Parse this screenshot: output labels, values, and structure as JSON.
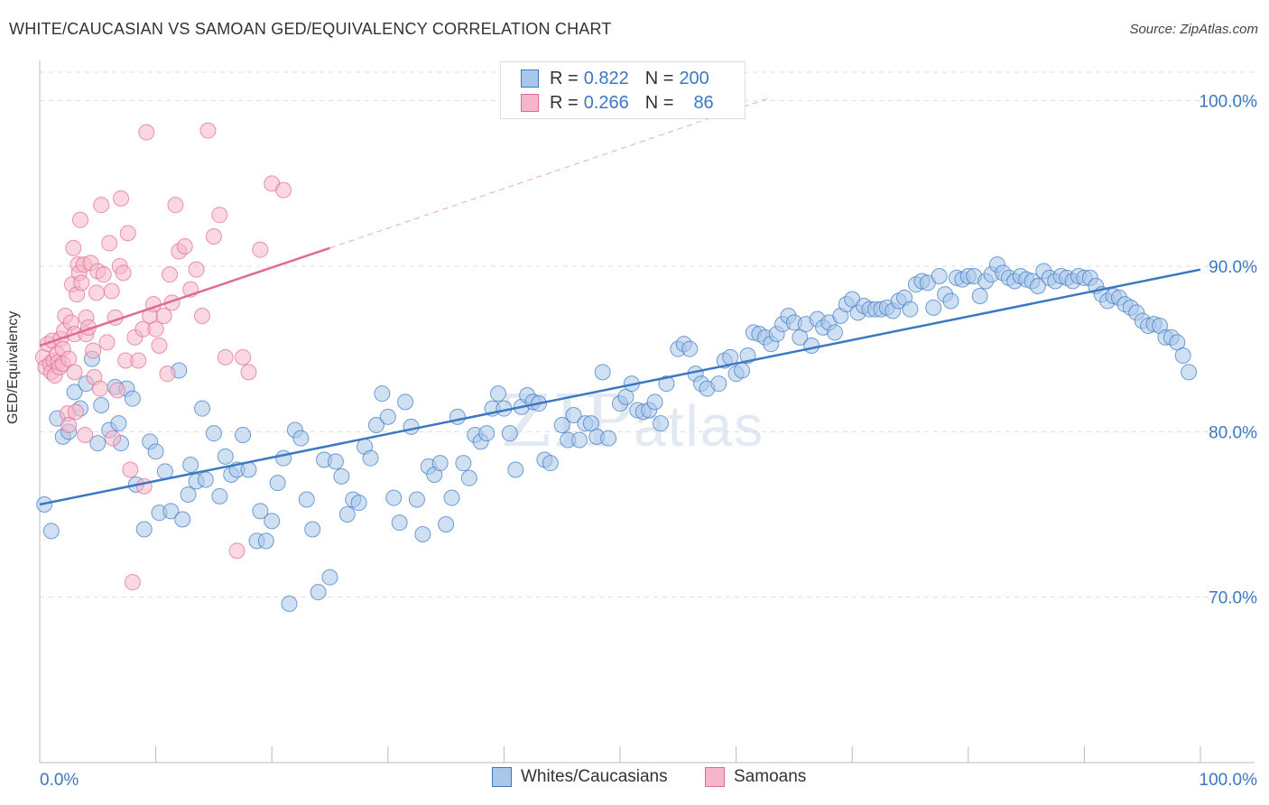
{
  "title": "WHITE/CAUCASIAN VS SAMOAN GED/EQUIVALENCY CORRELATION CHART",
  "source": "Source: ZipAtlas.com",
  "watermark": "ZIPatlas",
  "legend": {
    "row1": {
      "r_label": "R =",
      "r_value": "0.822",
      "n_label": "N =",
      "n_value": "200"
    },
    "row2": {
      "r_label": "R =",
      "r_value": "0.266",
      "n_label": "N =",
      "n_value": "86"
    }
  },
  "colors": {
    "blue": "#3b78c3",
    "blue_fill": "#a9c7ea",
    "pink": "#e06a92",
    "pink_fill": "#f5b6c9"
  },
  "chart_data": {
    "type": "scatter",
    "xlabel": "",
    "ylabel": "GED/Equivalency",
    "xlim": [
      0,
      100
    ],
    "ylim": [
      60,
      102
    ],
    "x_tick_labels": [
      "0.0%",
      "100.0%"
    ],
    "y_tick_labels": [
      "70.0%",
      "80.0%",
      "90.0%",
      "100.0%"
    ],
    "y_ticks": [
      70,
      80,
      90,
      100
    ],
    "grid": true,
    "series": [
      {
        "name": "Whites/Caucasians",
        "color": "#3b78c3",
        "trend": {
          "x0": 0,
          "y0": 75.6,
          "x1": 100,
          "y1": 89.8
        },
        "points": [
          [
            0.4,
            75.6
          ],
          [
            1,
            74
          ],
          [
            1.5,
            80.8
          ],
          [
            2,
            79.7
          ],
          [
            2.5,
            80
          ],
          [
            3,
            82.4
          ],
          [
            3.5,
            81.4
          ],
          [
            4,
            82.9
          ],
          [
            4.5,
            84.4
          ],
          [
            5,
            79.3
          ],
          [
            5.3,
            81.6
          ],
          [
            6,
            80.1
          ],
          [
            6.5,
            82.7
          ],
          [
            6.8,
            80.5
          ],
          [
            7,
            79.3
          ],
          [
            7.5,
            82.6
          ],
          [
            8,
            82
          ],
          [
            8.3,
            76.8
          ],
          [
            9,
            74.1
          ],
          [
            9.5,
            79.4
          ],
          [
            10,
            78.8
          ],
          [
            10.3,
            75.1
          ],
          [
            10.8,
            77.6
          ],
          [
            11.3,
            75.2
          ],
          [
            12,
            83.7
          ],
          [
            12.3,
            74.7
          ],
          [
            12.8,
            76.2
          ],
          [
            13,
            78
          ],
          [
            13.5,
            77
          ],
          [
            14,
            81.4
          ],
          [
            14.3,
            77.1
          ],
          [
            15,
            79.9
          ],
          [
            15.5,
            76.1
          ],
          [
            16,
            78.5
          ],
          [
            16.5,
            77.4
          ],
          [
            17,
            77.7
          ],
          [
            17.5,
            79.8
          ],
          [
            18,
            77.7
          ],
          [
            18.7,
            73.4
          ],
          [
            19,
            75.2
          ],
          [
            19.5,
            73.4
          ],
          [
            20,
            74.6
          ],
          [
            20.5,
            76.9
          ],
          [
            21,
            78.4
          ],
          [
            21.5,
            69.6
          ],
          [
            22,
            80.1
          ],
          [
            22.5,
            79.6
          ],
          [
            23,
            75.9
          ],
          [
            23.5,
            74.1
          ],
          [
            24,
            70.3
          ],
          [
            24.5,
            78.3
          ],
          [
            25,
            71.2
          ],
          [
            25.5,
            78.2
          ],
          [
            26,
            77.3
          ],
          [
            26.5,
            75
          ],
          [
            27,
            75.9
          ],
          [
            27.5,
            75.7
          ],
          [
            28,
            79.1
          ],
          [
            28.5,
            78.4
          ],
          [
            29,
            80.4
          ],
          [
            29.5,
            82.3
          ],
          [
            30,
            80.9
          ],
          [
            30.5,
            76
          ],
          [
            31,
            74.5
          ],
          [
            31.5,
            81.8
          ],
          [
            32,
            80.3
          ],
          [
            32.5,
            75.9
          ],
          [
            33,
            73.8
          ],
          [
            33.5,
            77.9
          ],
          [
            34,
            77.4
          ],
          [
            34.5,
            78.1
          ],
          [
            35,
            74.4
          ],
          [
            35.5,
            76
          ],
          [
            36,
            80.9
          ],
          [
            36.5,
            78.1
          ],
          [
            37,
            77.2
          ],
          [
            37.5,
            79.8
          ],
          [
            38,
            79.4
          ],
          [
            38.5,
            79.9
          ],
          [
            39,
            81.4
          ],
          [
            39.5,
            82.3
          ],
          [
            40,
            81.4
          ],
          [
            40.5,
            79.9
          ],
          [
            41,
            77.7
          ],
          [
            41.5,
            81.5
          ],
          [
            42,
            82.2
          ],
          [
            42.5,
            81.8
          ],
          [
            43,
            81.7
          ],
          [
            43.5,
            78.3
          ],
          [
            44,
            78.1
          ],
          [
            45,
            80.4
          ],
          [
            45.5,
            79.5
          ],
          [
            46,
            81
          ],
          [
            46.5,
            79.5
          ],
          [
            47,
            80.5
          ],
          [
            47.5,
            80.5
          ],
          [
            48,
            79.7
          ],
          [
            48.5,
            83.6
          ],
          [
            49,
            79.6
          ],
          [
            50,
            81.7
          ],
          [
            50.5,
            82.1
          ],
          [
            51,
            82.9
          ],
          [
            51.5,
            81.3
          ],
          [
            52,
            81.2
          ],
          [
            52.5,
            81.3
          ],
          [
            53,
            81.8
          ],
          [
            53.5,
            80.5
          ],
          [
            54,
            82.9
          ],
          [
            55,
            85
          ],
          [
            55.5,
            85.3
          ],
          [
            56,
            85
          ],
          [
            56.5,
            83.5
          ],
          [
            57,
            82.9
          ],
          [
            57.5,
            82.6
          ],
          [
            58.5,
            82.9
          ],
          [
            59,
            84.3
          ],
          [
            59.5,
            84.5
          ],
          [
            60,
            83.5
          ],
          [
            60.5,
            83.7
          ],
          [
            61,
            84.6
          ],
          [
            61.5,
            86
          ],
          [
            62,
            85.9
          ],
          [
            62.5,
            85.7
          ],
          [
            63,
            85.3
          ],
          [
            63.5,
            85.9
          ],
          [
            64,
            86.5
          ],
          [
            64.5,
            87
          ],
          [
            65,
            86.6
          ],
          [
            65.5,
            85.7
          ],
          [
            66,
            86.5
          ],
          [
            66.5,
            85.2
          ],
          [
            67,
            86.8
          ],
          [
            67.5,
            86.3
          ],
          [
            68,
            86.6
          ],
          [
            68.5,
            86
          ],
          [
            69,
            87
          ],
          [
            69.5,
            87.7
          ],
          [
            70,
            88
          ],
          [
            70.5,
            87.2
          ],
          [
            71,
            87.6
          ],
          [
            71.5,
            87.4
          ],
          [
            72,
            87.4
          ],
          [
            72.5,
            87.4
          ],
          [
            73,
            87.5
          ],
          [
            73.5,
            87.3
          ],
          [
            74,
            87.9
          ],
          [
            74.5,
            88.1
          ],
          [
            75,
            87.4
          ],
          [
            75.5,
            88.9
          ],
          [
            76,
            89.1
          ],
          [
            76.5,
            89
          ],
          [
            77,
            87.5
          ],
          [
            77.5,
            89.4
          ],
          [
            78,
            88.3
          ],
          [
            78.5,
            87.9
          ],
          [
            79,
            89.3
          ],
          [
            79.5,
            89.2
          ],
          [
            80,
            89.4
          ],
          [
            80.5,
            89.4
          ],
          [
            81,
            88.2
          ],
          [
            81.5,
            89.1
          ],
          [
            82,
            89.5
          ],
          [
            82.5,
            90.1
          ],
          [
            83,
            89.6
          ],
          [
            83.5,
            89.3
          ],
          [
            84,
            89.1
          ],
          [
            84.5,
            89.4
          ],
          [
            85,
            89.2
          ],
          [
            85.5,
            89.1
          ],
          [
            86,
            88.8
          ],
          [
            86.5,
            89.7
          ],
          [
            87,
            89.3
          ],
          [
            87.5,
            89.1
          ],
          [
            88,
            89.4
          ],
          [
            88.5,
            89.3
          ],
          [
            89,
            89.1
          ],
          [
            89.5,
            89.4
          ],
          [
            90,
            89.3
          ],
          [
            90.5,
            89.3
          ],
          [
            91,
            88.8
          ],
          [
            91.5,
            88.3
          ],
          [
            92,
            87.9
          ],
          [
            92.5,
            88.2
          ],
          [
            93,
            88.1
          ],
          [
            93.5,
            87.7
          ],
          [
            94,
            87.5
          ],
          [
            94.5,
            87.2
          ],
          [
            95,
            86.7
          ],
          [
            95.5,
            86.4
          ],
          [
            96,
            86.5
          ],
          [
            96.5,
            86.4
          ],
          [
            97,
            85.7
          ],
          [
            97.5,
            85.7
          ],
          [
            98,
            85.4
          ],
          [
            98.5,
            84.6
          ],
          [
            99,
            83.6
          ]
        ]
      },
      {
        "name": "Samoans",
        "color": "#e06a92",
        "trend": {
          "x0": 0,
          "y0": 85.2,
          "x1": 25,
          "y1": 91.1
        },
        "trend_dashed_to": {
          "x": 63,
          "y": 100.2
        },
        "points": [
          [
            0.3,
            84.5
          ],
          [
            0.5,
            83.9
          ],
          [
            0.7,
            85.3
          ],
          [
            0.9,
            84.1
          ],
          [
            1,
            83.6
          ],
          [
            1.1,
            85.5
          ],
          [
            1.2,
            84.3
          ],
          [
            1.3,
            83.4
          ],
          [
            1.5,
            84.7
          ],
          [
            1.6,
            84.2
          ],
          [
            1.7,
            83.9
          ],
          [
            1.8,
            85.6
          ],
          [
            2,
            85
          ],
          [
            2,
            84.1
          ],
          [
            2.1,
            86.1
          ],
          [
            2.2,
            87
          ],
          [
            2.4,
            81.1
          ],
          [
            2.5,
            80.4
          ],
          [
            2.5,
            84.4
          ],
          [
            2.7,
            86.6
          ],
          [
            2.8,
            88.9
          ],
          [
            2.9,
            91.1
          ],
          [
            3,
            83.6
          ],
          [
            3,
            85.9
          ],
          [
            3.1,
            81.2
          ],
          [
            3.2,
            88.3
          ],
          [
            3.3,
            90.1
          ],
          [
            3.4,
            89.6
          ],
          [
            3.5,
            92.8
          ],
          [
            3.6,
            89
          ],
          [
            3.8,
            90.1
          ],
          [
            3.9,
            79.8
          ],
          [
            4,
            85.9
          ],
          [
            4,
            86.9
          ],
          [
            4.2,
            86.3
          ],
          [
            4.4,
            90.2
          ],
          [
            4.6,
            84.9
          ],
          [
            4.7,
            83.3
          ],
          [
            4.9,
            88.4
          ],
          [
            5,
            89.7
          ],
          [
            5.2,
            82.6
          ],
          [
            5.3,
            93.7
          ],
          [
            5.5,
            89.5
          ],
          [
            5.8,
            85.4
          ],
          [
            6,
            91.4
          ],
          [
            6.2,
            88.5
          ],
          [
            6.3,
            79.6
          ],
          [
            6.5,
            86.9
          ],
          [
            6.7,
            82.5
          ],
          [
            6.9,
            90
          ],
          [
            7,
            94.1
          ],
          [
            7.2,
            89.6
          ],
          [
            7.4,
            84.3
          ],
          [
            7.6,
            92
          ],
          [
            7.8,
            77.7
          ],
          [
            8,
            70.9
          ],
          [
            8.2,
            85.7
          ],
          [
            8.5,
            84.3
          ],
          [
            8.9,
            86.2
          ],
          [
            9,
            76.7
          ],
          [
            9.2,
            98.1
          ],
          [
            9.5,
            87
          ],
          [
            9.8,
            87.7
          ],
          [
            10,
            86.2
          ],
          [
            10.3,
            85.2
          ],
          [
            10.7,
            87
          ],
          [
            11,
            83.5
          ],
          [
            11.2,
            89.5
          ],
          [
            11.4,
            87.8
          ],
          [
            11.7,
            93.7
          ],
          [
            12,
            90.9
          ],
          [
            12.5,
            91.2
          ],
          [
            13,
            88.6
          ],
          [
            13.5,
            89.8
          ],
          [
            14,
            87
          ],
          [
            14.5,
            98.2
          ],
          [
            15,
            91.8
          ],
          [
            15.5,
            93.1
          ],
          [
            16,
            84.5
          ],
          [
            17,
            72.8
          ],
          [
            17.5,
            84.5
          ],
          [
            18,
            83.6
          ],
          [
            19,
            91
          ],
          [
            20,
            95
          ],
          [
            21,
            94.6
          ]
        ]
      }
    ]
  },
  "bottom_legend": {
    "series1": "Whites/Caucasians",
    "series2": "Samoans"
  }
}
